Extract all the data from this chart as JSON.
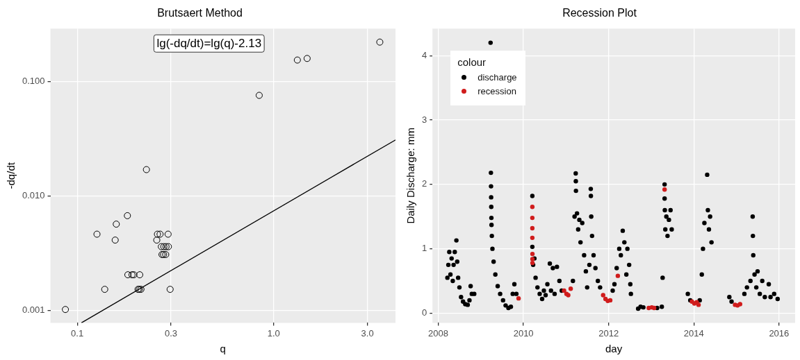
{
  "chart_data": [
    {
      "type": "scatter",
      "title": "Brutsaert Method",
      "xlabel": "q",
      "ylabel": "-dq/dt",
      "log": "xy",
      "grid": true,
      "marker": "circle",
      "xlim": [
        0.073,
        4.17
      ],
      "ylim": [
        0.00078,
        0.29
      ],
      "xticks": [
        0.1,
        0.3,
        {
          "value": 1,
          "label": "1.0"
        },
        {
          "value": 3,
          "label": "3.0"
        }
      ],
      "yticks": [
        {
          "value": 0.001,
          "label": "0.001"
        },
        {
          "value": 0.01,
          "label": "0.010"
        },
        {
          "value": 0.1,
          "label": "0.100"
        }
      ],
      "annotations": [
        "lg(-dq/dt)=lg(q)-2.13"
      ],
      "series": [
        {
          "color": "#000000",
          "x": [
            0.087,
            0.126,
            0.138,
            0.156,
            0.158,
            0.18,
            0.181,
            0.19,
            0.194,
            0.208,
            0.204,
            0.207,
            0.211,
            0.225,
            0.254,
            0.256,
            0.264,
            0.29,
            0.268,
            0.276,
            0.283,
            0.291,
            0.27,
            0.275,
            0.282,
            0.297,
            0.844,
            1.32,
            1.48,
            3.47
          ],
          "values": [
            0.00102,
            0.00464,
            0.00153,
            0.00412,
            0.00568,
            0.00673,
            0.00205,
            0.00205,
            0.00205,
            0.00205,
            0.00153,
            0.00153,
            0.00153,
            0.017,
            0.00412,
            0.00464,
            0.00464,
            0.00464,
            0.00361,
            0.00361,
            0.00361,
            0.00361,
            0.00308,
            0.00308,
            0.00308,
            0.00153,
            0.0757,
            0.154,
            0.159,
            0.221
          ]
        },
        {
          "type": "line",
          "marker": "none",
          "color": "#000000",
          "x": [
            0.105,
            4.17
          ],
          "values": [
            0.00078,
            0.0309
          ]
        }
      ]
    },
    {
      "type": "scatter",
      "title": "Recession Plot",
      "xlabel": "day",
      "ylabel": "Daily Discharge: mm",
      "grid": true,
      "marker": "circle",
      "legend": "top left",
      "legend_title": "colour",
      "xlim": [
        "2007-11-13",
        "2016-05-18"
      ],
      "ylim": [
        -0.15,
        4.42
      ],
      "xticks": [
        "2008",
        "2010",
        "2012",
        "2014",
        "2016"
      ],
      "yticks": [
        0,
        1,
        2,
        3,
        4
      ],
      "series": [
        {
          "name": "discharge",
          "color": "#000000",
          "x": [
            "2008-03-20",
            "2008-03-28",
            "2008-04-05",
            "2008-04-15",
            "2008-04-25",
            "2008-05-05",
            "2008-05-12",
            "2008-05-22",
            "2008-06-05",
            "2008-06-12",
            "2008-06-20",
            "2008-07-01",
            "2008-07-15",
            "2008-08-01",
            "2008-08-20",
            "2008-09-10",
            "2008-09-25",
            "2008-10-05",
            "2008-10-15",
            "2008-11-05",
            "2009-03-25",
            "2009-03-28",
            "2009-03-29",
            "2009-03-30",
            "2009-03-31",
            "2009-04-01",
            "2009-04-02",
            "2009-04-05",
            "2009-04-10",
            "2009-04-20",
            "2009-05-05",
            "2009-05-25",
            "2009-06-15",
            "2009-07-10",
            "2009-08-01",
            "2009-08-25",
            "2009-09-15",
            "2009-10-01",
            "2009-10-15",
            "2009-11-01",
            "2010-03-18",
            "2010-03-18",
            "2010-03-25",
            "2010-04-05",
            "2010-04-15",
            "2010-05-01",
            "2010-05-20",
            "2010-06-10",
            "2010-06-25",
            "2010-07-10",
            "2010-07-25",
            "2010-08-15",
            "2010-08-25",
            "2010-09-10",
            "2010-09-25",
            "2010-10-15",
            "2010-11-05",
            "2010-11-25",
            "2011-03-01",
            "2011-03-15",
            "2011-03-25",
            "2011-03-26",
            "2011-03-27",
            "2011-04-05",
            "2011-04-15",
            "2011-04-25",
            "2011-05-05",
            "2011-05-20",
            "2011-06-05",
            "2011-06-20",
            "2011-07-01",
            "2011-07-20",
            "2011-08-01",
            "2011-08-02",
            "2011-08-05",
            "2011-08-12",
            "2011-08-25",
            "2011-09-10",
            "2011-10-01",
            "2011-10-20",
            "2012-02-05",
            "2012-02-20",
            "2012-03-10",
            "2012-04-01",
            "2012-04-15",
            "2012-05-01",
            "2012-05-15",
            "2012-06-01",
            "2012-06-10",
            "2012-06-25",
            "2012-07-05",
            "2012-07-10",
            "2012-09-10",
            "2012-10-01",
            "2012-10-25",
            "2013-02-20",
            "2013-04-01",
            "2013-04-08",
            "2013-04-25",
            "2013-04-25",
            "2013-04-27",
            "2013-05-01",
            "2013-05-10",
            "2013-05-20",
            "2013-06-01",
            "2013-06-15",
            "2013-06-25",
            "2013-11-10",
            "2013-12-01",
            "2014-02-20",
            "2014-03-10",
            "2014-03-20",
            "2014-04-01",
            "2014-04-25",
            "2014-05-01",
            "2014-05-10",
            "2014-05-20",
            "2014-06-01",
            "2014-11-01",
            "2014-11-20",
            "2015-03-10",
            "2015-04-01",
            "2015-05-01",
            "2015-05-20",
            "2015-05-22",
            "2015-05-25",
            "2015-06-05",
            "2015-06-20",
            "2015-07-01",
            "2015-07-20",
            "2015-08-10",
            "2015-09-01",
            "2015-10-05",
            "2015-10-20",
            "2015-11-20",
            "2015-12-20"
          ],
          "values": [
            0.55,
            0.75,
            0.95,
            0.6,
            0.85,
            0.5,
            0.75,
            0.95,
            1.13,
            0.8,
            0.55,
            0.4,
            0.25,
            0.18,
            0.14,
            0.13,
            0.2,
            0.42,
            0.3,
            0.3,
            4.2,
            2.18,
            1.97,
            1.8,
            1.65,
            1.48,
            1.37,
            1.2,
            1.0,
            0.8,
            0.6,
            0.42,
            0.3,
            0.2,
            0.12,
            0.08,
            0.1,
            0.3,
            0.45,
            0.3,
            1.82,
            1.03,
            0.75,
            0.85,
            0.55,
            0.4,
            0.3,
            0.22,
            0.35,
            0.28,
            0.45,
            0.77,
            0.35,
            0.7,
            0.3,
            0.72,
            0.5,
            0.35,
            0.5,
            1.5,
            2.17,
            2.05,
            1.9,
            1.55,
            1.3,
            1.45,
            1.1,
            1.4,
            0.9,
            0.65,
            0.4,
            0.75,
            1.93,
            1.82,
            1.5,
            1.2,
            0.9,
            0.7,
            0.5,
            0.4,
            0.35,
            0.45,
            0.7,
            1.0,
            0.9,
            1.28,
            1.1,
            0.6,
            1.0,
            0.75,
            0.45,
            0.3,
            0.07,
            0.1,
            0.09,
            0.08,
            0.1,
            0.55,
            2.0,
            1.78,
            1.6,
            1.3,
            1.5,
            1.2,
            1.45,
            1.6,
            1.3,
            0.3,
            0.2,
            0.2,
            0.6,
            1.0,
            1.4,
            2.15,
            1.6,
            1.3,
            1.5,
            1.1,
            0.25,
            0.18,
            0.3,
            0.4,
            0.5,
            1.5,
            1.2,
            0.9,
            0.6,
            0.4,
            0.65,
            0.3,
            0.5,
            0.25,
            0.45,
            0.25,
            0.3,
            0.22
          ]
        },
        {
          "name": "recession",
          "color": "#d01c1c",
          "x": [
            "2009-11-20",
            "2010-03-18",
            "2010-03-18",
            "2010-03-18",
            "2010-03-18",
            "2010-03-19",
            "2010-03-19",
            "2010-03-19",
            "2010-12-15",
            "2011-01-05",
            "2011-01-20",
            "2011-02-10",
            "2011-11-15",
            "2011-12-05",
            "2011-12-25",
            "2012-01-15",
            "2012-03-20",
            "2012-12-10",
            "2013-01-05",
            "2013-01-25",
            "2013-04-25",
            "2013-12-15",
            "2014-01-05",
            "2014-01-25",
            "2014-02-10",
            "2014-12-20",
            "2015-01-10",
            "2015-02-01"
          ],
          "values": [
            0.23,
            1.65,
            1.48,
            1.32,
            1.17,
            0.92,
            0.84,
            0.78,
            0.35,
            0.3,
            0.28,
            0.38,
            0.28,
            0.22,
            0.19,
            0.2,
            0.58,
            0.08,
            0.09,
            0.08,
            1.92,
            0.18,
            0.15,
            0.17,
            0.13,
            0.13,
            0.12,
            0.14
          ]
        }
      ]
    }
  ]
}
